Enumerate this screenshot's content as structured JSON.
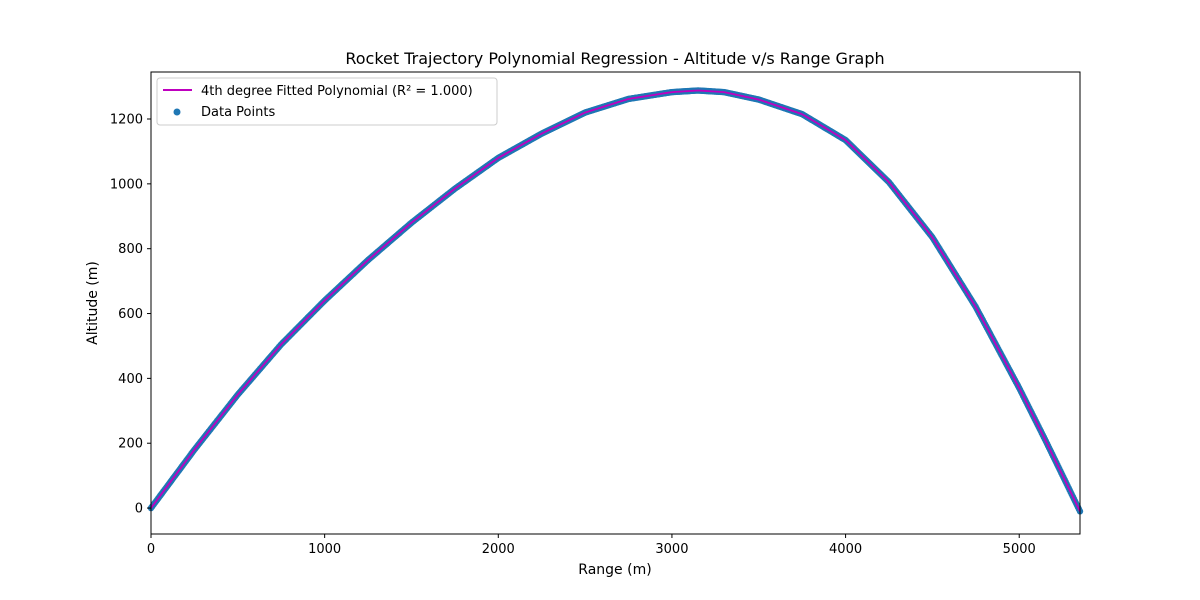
{
  "chart_data": {
    "type": "scatter",
    "title": "Rocket Trajectory Polynomial Regression - Altitude v/s Range Graph",
    "xlabel": "Range (m)",
    "ylabel": "Altitude (m)",
    "xlim": [
      0,
      5350
    ],
    "ylim": [
      -80,
      1345
    ],
    "x_ticks": [
      0,
      1000,
      2000,
      3000,
      4000,
      5000
    ],
    "y_ticks": [
      0,
      200,
      400,
      600,
      800,
      1000,
      1200
    ],
    "grid": false,
    "legend_position": "top-left",
    "series": [
      {
        "name": "4th degree Fitted Polynomial (R² = 1.000)",
        "kind": "line",
        "color": "#bf00bf",
        "x": [
          0,
          250,
          500,
          750,
          1000,
          1250,
          1500,
          1750,
          2000,
          2250,
          2500,
          2750,
          3000,
          3150,
          3300,
          3500,
          3750,
          4000,
          4250,
          4500,
          4750,
          5000,
          5150,
          5350
        ],
        "y": [
          0,
          180,
          350,
          505,
          640,
          765,
          880,
          985,
          1080,
          1155,
          1220,
          1262,
          1283,
          1288,
          1283,
          1260,
          1215,
          1135,
          1005,
          835,
          620,
          370,
          210,
          -10
        ]
      },
      {
        "name": "Data Points",
        "kind": "scatter",
        "color": "#1f77b4",
        "x": [
          0,
          250,
          500,
          750,
          1000,
          1250,
          1500,
          1750,
          2000,
          2250,
          2500,
          2750,
          3000,
          3150,
          3300,
          3500,
          3750,
          4000,
          4250,
          4500,
          4750,
          5000,
          5150,
          5350
        ],
        "y": [
          0,
          180,
          350,
          505,
          640,
          765,
          880,
          985,
          1080,
          1155,
          1220,
          1262,
          1283,
          1288,
          1283,
          1260,
          1215,
          1135,
          1005,
          835,
          620,
          370,
          210,
          -10
        ]
      }
    ]
  }
}
